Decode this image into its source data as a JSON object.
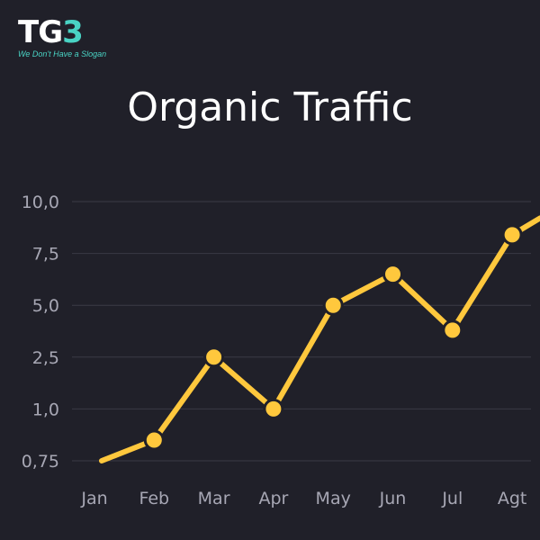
{
  "logo": {
    "mark_tg": "TG",
    "mark_3": "3",
    "slogan": "We Don't Have a Slogan"
  },
  "colors": {
    "background": "#202029",
    "line": "#ffc83d",
    "accent": "#49d3c4",
    "grid": "#3a3a45",
    "text": "#ffffff",
    "tick": "#a7a7b4"
  },
  "chart_data": {
    "type": "line",
    "title": "Organic Traffic",
    "categories": [
      "Jan",
      "Feb",
      "Mar",
      "Apr",
      "May",
      "Jun",
      "Jul",
      "Agt"
    ],
    "y_tick_labels": [
      "0,75",
      "1,0",
      "2,5",
      "5,0",
      "7,5",
      "10,0"
    ],
    "series": [
      {
        "values": [
          0.75,
          0.85,
          2.5,
          1.0,
          5.0,
          6.5,
          3.8,
          8.4
        ],
        "trailing_value": 9.2
      }
    ],
    "grid": true,
    "legend": "none"
  }
}
